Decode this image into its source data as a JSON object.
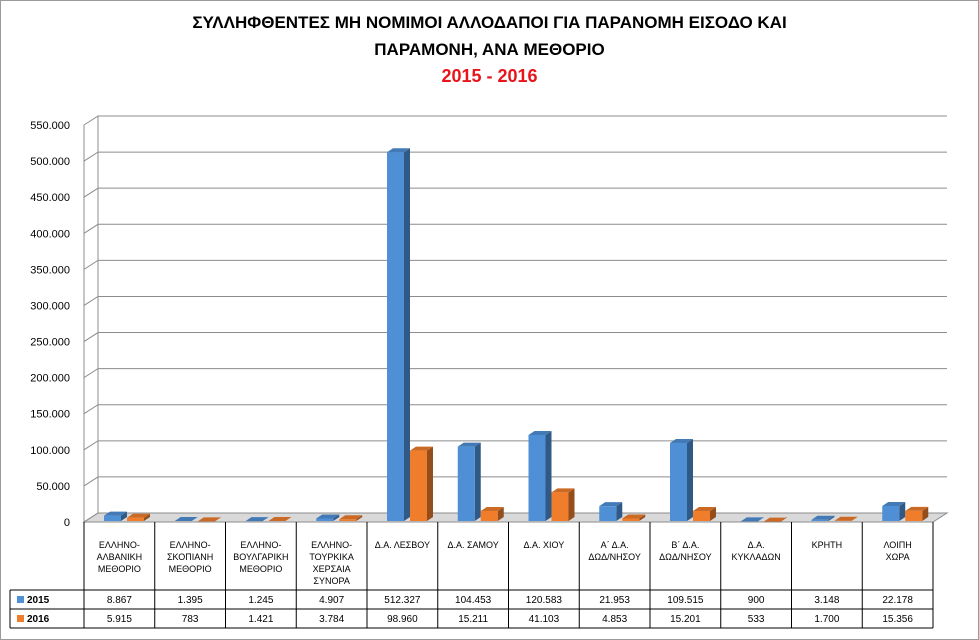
{
  "title_lines": [
    "ΣΥΛΛΗΦΘΕΝΤΕΣ ΜΗ ΝΟΜΙΜΟΙ ΑΛΛΟΔΑΠΟΙ ΓΙΑ ΠΑΡΑΝΟΜΗ ΕΙΣΟΔΟ ΚΑΙ",
    "ΠΑΡΑΜΟΝΗ, ΑΝΑ ΜΕΘΟΡΙΟ"
  ],
  "subtitle": "2015 - 2016",
  "chart_data": {
    "type": "bar",
    "title": "ΣΥΛΛΗΦΘΕΝΤΕΣ ΜΗ ΝΟΜΙΜΟΙ ΑΛΛΟΔΑΠΟΙ ΓΙΑ ΠΑΡΑΝΟΜΗ ΕΙΣΟΔΟ ΚΑΙ ΠΑΡΑΜΟΝΗ, ΑΝΑ ΜΕΘΟΡΙΟ",
    "subtitle": "2015 - 2016",
    "categories": [
      [
        "ΕΛΛΗΝΟ-",
        "ΑΛΒΑΝΙΚΗ",
        "ΜΕΘΟΡΙΟ"
      ],
      [
        "ΕΛΛΗΝΟ-",
        "ΣΚΟΠΙΑΝΗ",
        "ΜΕΘΟΡΙΟ"
      ],
      [
        "ΕΛΛΗΝΟ-",
        "ΒΟΥΛΓΑΡΙΚΗ",
        "ΜΕΘΟΡΙΟ"
      ],
      [
        "ΕΛΛΗΝΟ-",
        "ΤΟΥΡΚΙΚΑ",
        "ΧΕΡΣΑΙΑ",
        "ΣΥΝΟΡΑ"
      ],
      [
        "Δ.Α. ΛΕΣΒΟΥ"
      ],
      [
        "Δ.Α. ΣΑΜΟΥ"
      ],
      [
        "Δ.Α. ΧΙΟΥ"
      ],
      [
        "Α΄ Δ.Α.",
        "ΔΩΔ/ΝΗΣΟΥ"
      ],
      [
        "Β΄ Δ.Α.",
        "ΔΩΔ/ΝΗΣΟΥ"
      ],
      [
        "Δ.Α.",
        "ΚΥΚΛΑΔΩΝ"
      ],
      [
        "ΚΡΗΤΗ"
      ],
      [
        "ΛΟΙΠΗ",
        "ΧΩΡΑ"
      ]
    ],
    "series": [
      {
        "name": "2015",
        "color": "#4f8fd6",
        "values": [
          8867,
          1395,
          1245,
          4907,
          512327,
          104453,
          120583,
          21953,
          109515,
          900,
          3148,
          22178
        ],
        "labels": [
          "8.867",
          "1.395",
          "1.245",
          "4.907",
          "512.327",
          "104.453",
          "120.583",
          "21.953",
          "109.515",
          "900",
          "3.148",
          "22.178"
        ]
      },
      {
        "name": "2016",
        "color": "#ef7d2b",
        "values": [
          5915,
          783,
          1421,
          3784,
          98960,
          15211,
          41103,
          4853,
          15201,
          533,
          1700,
          15356
        ],
        "labels": [
          "5.915",
          "783",
          "1.421",
          "3.784",
          "98.960",
          "15.211",
          "41.103",
          "4.853",
          "15.201",
          "533",
          "1.700",
          "15.356"
        ]
      }
    ],
    "ylim": [
      0,
      550000
    ],
    "yticks": [
      "0",
      "50.000",
      "100.000",
      "150.000",
      "200.000",
      "250.000",
      "300.000",
      "350.000",
      "400.000",
      "450.000",
      "500.000",
      "550.000"
    ],
    "grid": true,
    "legend": "data-table-left",
    "style": "3d-column"
  }
}
